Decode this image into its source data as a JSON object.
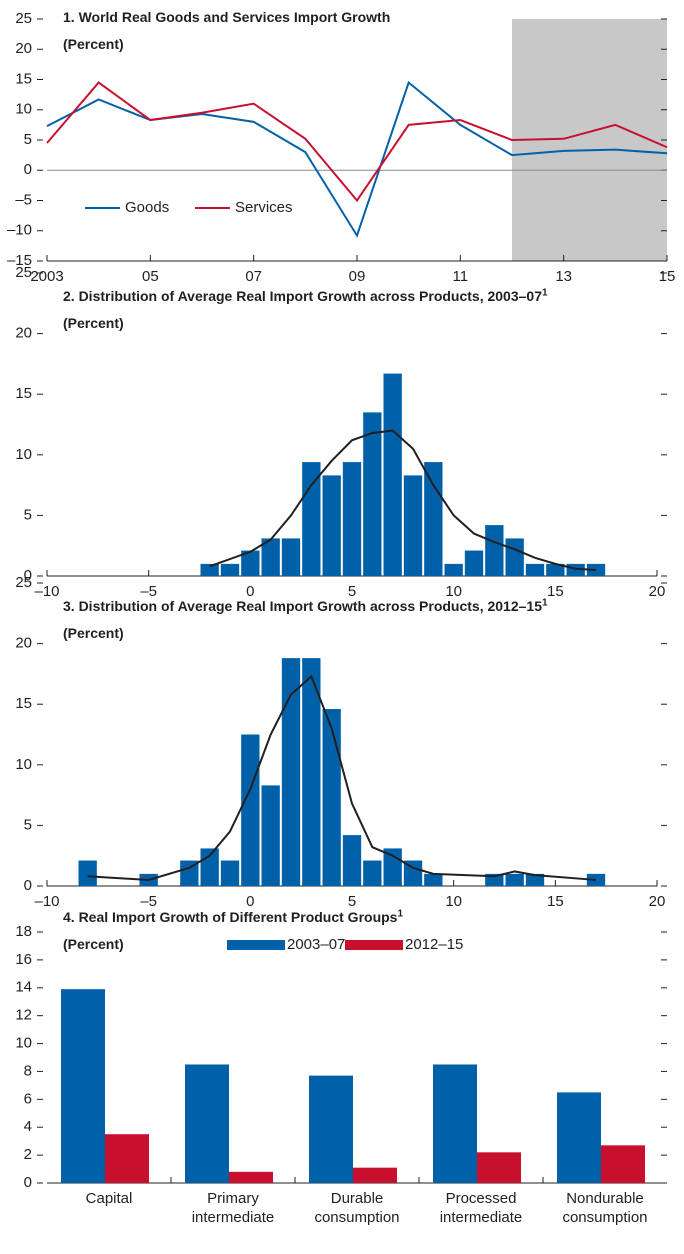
{
  "chart_data": [
    {
      "type": "line",
      "title": "1. World Real Goods and Services Import Growth",
      "subtitle": "(Percent)",
      "x": [
        2003,
        2004,
        2005,
        2006,
        2007,
        2008,
        2009,
        2010,
        2011,
        2012,
        2013,
        2014,
        2015
      ],
      "series": [
        {
          "name": "Goods",
          "color": "#0061a9",
          "values": [
            7.3,
            11.7,
            8.3,
            9.3,
            8.0,
            3.0,
            -10.8,
            14.5,
            7.5,
            2.5,
            3.2,
            3.4,
            2.8
          ]
        },
        {
          "name": "Services",
          "color": "#c8102e",
          "values": [
            4.5,
            14.5,
            8.3,
            9.5,
            11.0,
            5.2,
            -5.0,
            7.5,
            8.3,
            5.0,
            5.2,
            7.5,
            3.8
          ]
        }
      ],
      "xlim": [
        2003,
        2015
      ],
      "xticks": [
        2003,
        {
          "value": 2005,
          "label": "05"
        },
        {
          "value": 2007,
          "label": "07"
        },
        {
          "value": 2009,
          "label": "09"
        },
        {
          "value": 2011,
          "label": "11"
        },
        {
          "value": 2013,
          "label": "13"
        },
        {
          "value": 2015,
          "label": "15"
        }
      ],
      "ylim": [
        -15,
        25
      ],
      "yticks": [
        {
          "value": -15,
          "label": "–15"
        },
        {
          "value": -10,
          "label": "–10"
        },
        {
          "value": -5,
          "label": "–5"
        },
        0,
        5,
        10,
        15,
        20,
        25
      ],
      "shade_from": 2012,
      "shade_color": "#c8c8c9",
      "legend": "lower left"
    },
    {
      "type": "histogram",
      "title": "2. Distribution of Average Real Import Growth across Products, 2003–07",
      "title_note": "1",
      "subtitle": "(Percent)",
      "bins": [
        -2.5,
        -1.5,
        -0.5,
        0.5,
        1.5,
        2.5,
        3.5,
        4.5,
        5.5,
        6.5,
        7.5,
        8.5,
        9.5,
        10.5,
        11.5,
        12.5,
        13.5,
        14.5,
        15.5,
        16.5,
        17.5
      ],
      "values": [
        1.0,
        1.0,
        2.1,
        3.1,
        3.1,
        9.4,
        8.3,
        9.4,
        13.5,
        16.7,
        8.3,
        9.4,
        1.0,
        2.1,
        4.2,
        3.1,
        1.0,
        1.0,
        1.0,
        1.0
      ],
      "color": "#0061a9",
      "fit": {
        "x": [
          -2,
          0,
          1,
          2,
          3,
          4,
          5,
          6,
          7,
          8,
          9,
          10,
          11,
          12,
          13,
          14,
          15,
          16,
          17
        ],
        "values": [
          0.8,
          2.0,
          3.0,
          5.0,
          7.5,
          9.5,
          11.2,
          11.8,
          12.0,
          10.5,
          7.5,
          5.0,
          3.5,
          2.8,
          2.2,
          1.5,
          1.0,
          0.6,
          0.5
        ],
        "color": "#231f20"
      },
      "xlim": [
        -10,
        20
      ],
      "xticks": [
        {
          "value": -10,
          "label": "–10"
        },
        {
          "value": -5,
          "label": "–5"
        },
        0,
        5,
        10,
        15,
        20
      ],
      "ylim": [
        0,
        25
      ],
      "yticks": [
        0,
        5,
        10,
        15,
        20,
        25
      ]
    },
    {
      "type": "histogram",
      "title": "3. Distribution of Average Real Import Growth across Products, 2012–15",
      "title_note": "1",
      "subtitle": "(Percent)",
      "bins": [
        -8.5,
        -7.5,
        -6.5,
        -5.5,
        -4.5,
        -3.5,
        -2.5,
        -1.5,
        -0.5,
        0.5,
        1.5,
        2.5,
        3.5,
        4.5,
        5.5,
        6.5,
        7.5,
        8.5,
        9.5,
        10.5,
        11.5,
        12.5,
        13.5,
        14.5,
        15.5,
        16.5,
        17.5
      ],
      "values": [
        2.1,
        0,
        0,
        1.0,
        0,
        2.1,
        3.1,
        2.1,
        12.5,
        8.3,
        18.8,
        18.8,
        14.6,
        4.2,
        2.1,
        3.1,
        2.1,
        1.0,
        0,
        0,
        1.0,
        1.0,
        1.0,
        0,
        0,
        1.0
      ],
      "color": "#0061a9",
      "fit": {
        "x": [
          -8,
          -5,
          -3,
          -2,
          -1,
          0,
          1,
          2,
          3,
          4,
          5,
          6,
          7,
          8,
          9,
          12,
          13,
          14,
          17
        ],
        "values": [
          0.8,
          0.5,
          1.5,
          2.5,
          4.5,
          8.0,
          12.5,
          15.8,
          17.3,
          13.0,
          6.8,
          3.2,
          2.5,
          1.5,
          1.0,
          0.8,
          1.2,
          0.9,
          0.5
        ],
        "color": "#231f20"
      },
      "xlim": [
        -10,
        20
      ],
      "xticks": [
        {
          "value": -10,
          "label": "–10"
        },
        {
          "value": -5,
          "label": "–5"
        },
        0,
        5,
        10,
        15,
        20
      ],
      "ylim": [
        0,
        25
      ],
      "yticks": [
        0,
        5,
        10,
        15,
        20,
        25
      ]
    },
    {
      "type": "bar",
      "title": "4. Real Import Growth of Different Product Groups",
      "title_note": "1",
      "subtitle": "(Percent)",
      "categories": [
        "Capital",
        "Primary intermediate",
        "Durable consumption",
        "Processed intermediate",
        "Nondurable consumption"
      ],
      "series": [
        {
          "name": "2003–07",
          "color": "#0061a9",
          "values": [
            13.9,
            8.5,
            7.7,
            8.5,
            6.5
          ]
        },
        {
          "name": "2012–15",
          "color": "#c8102e",
          "values": [
            3.5,
            0.8,
            1.1,
            2.2,
            2.7
          ]
        }
      ],
      "ylim": [
        0,
        18
      ],
      "yticks": [
        0,
        2,
        4,
        6,
        8,
        10,
        12,
        14,
        16,
        18
      ],
      "legend": "upper center"
    }
  ]
}
